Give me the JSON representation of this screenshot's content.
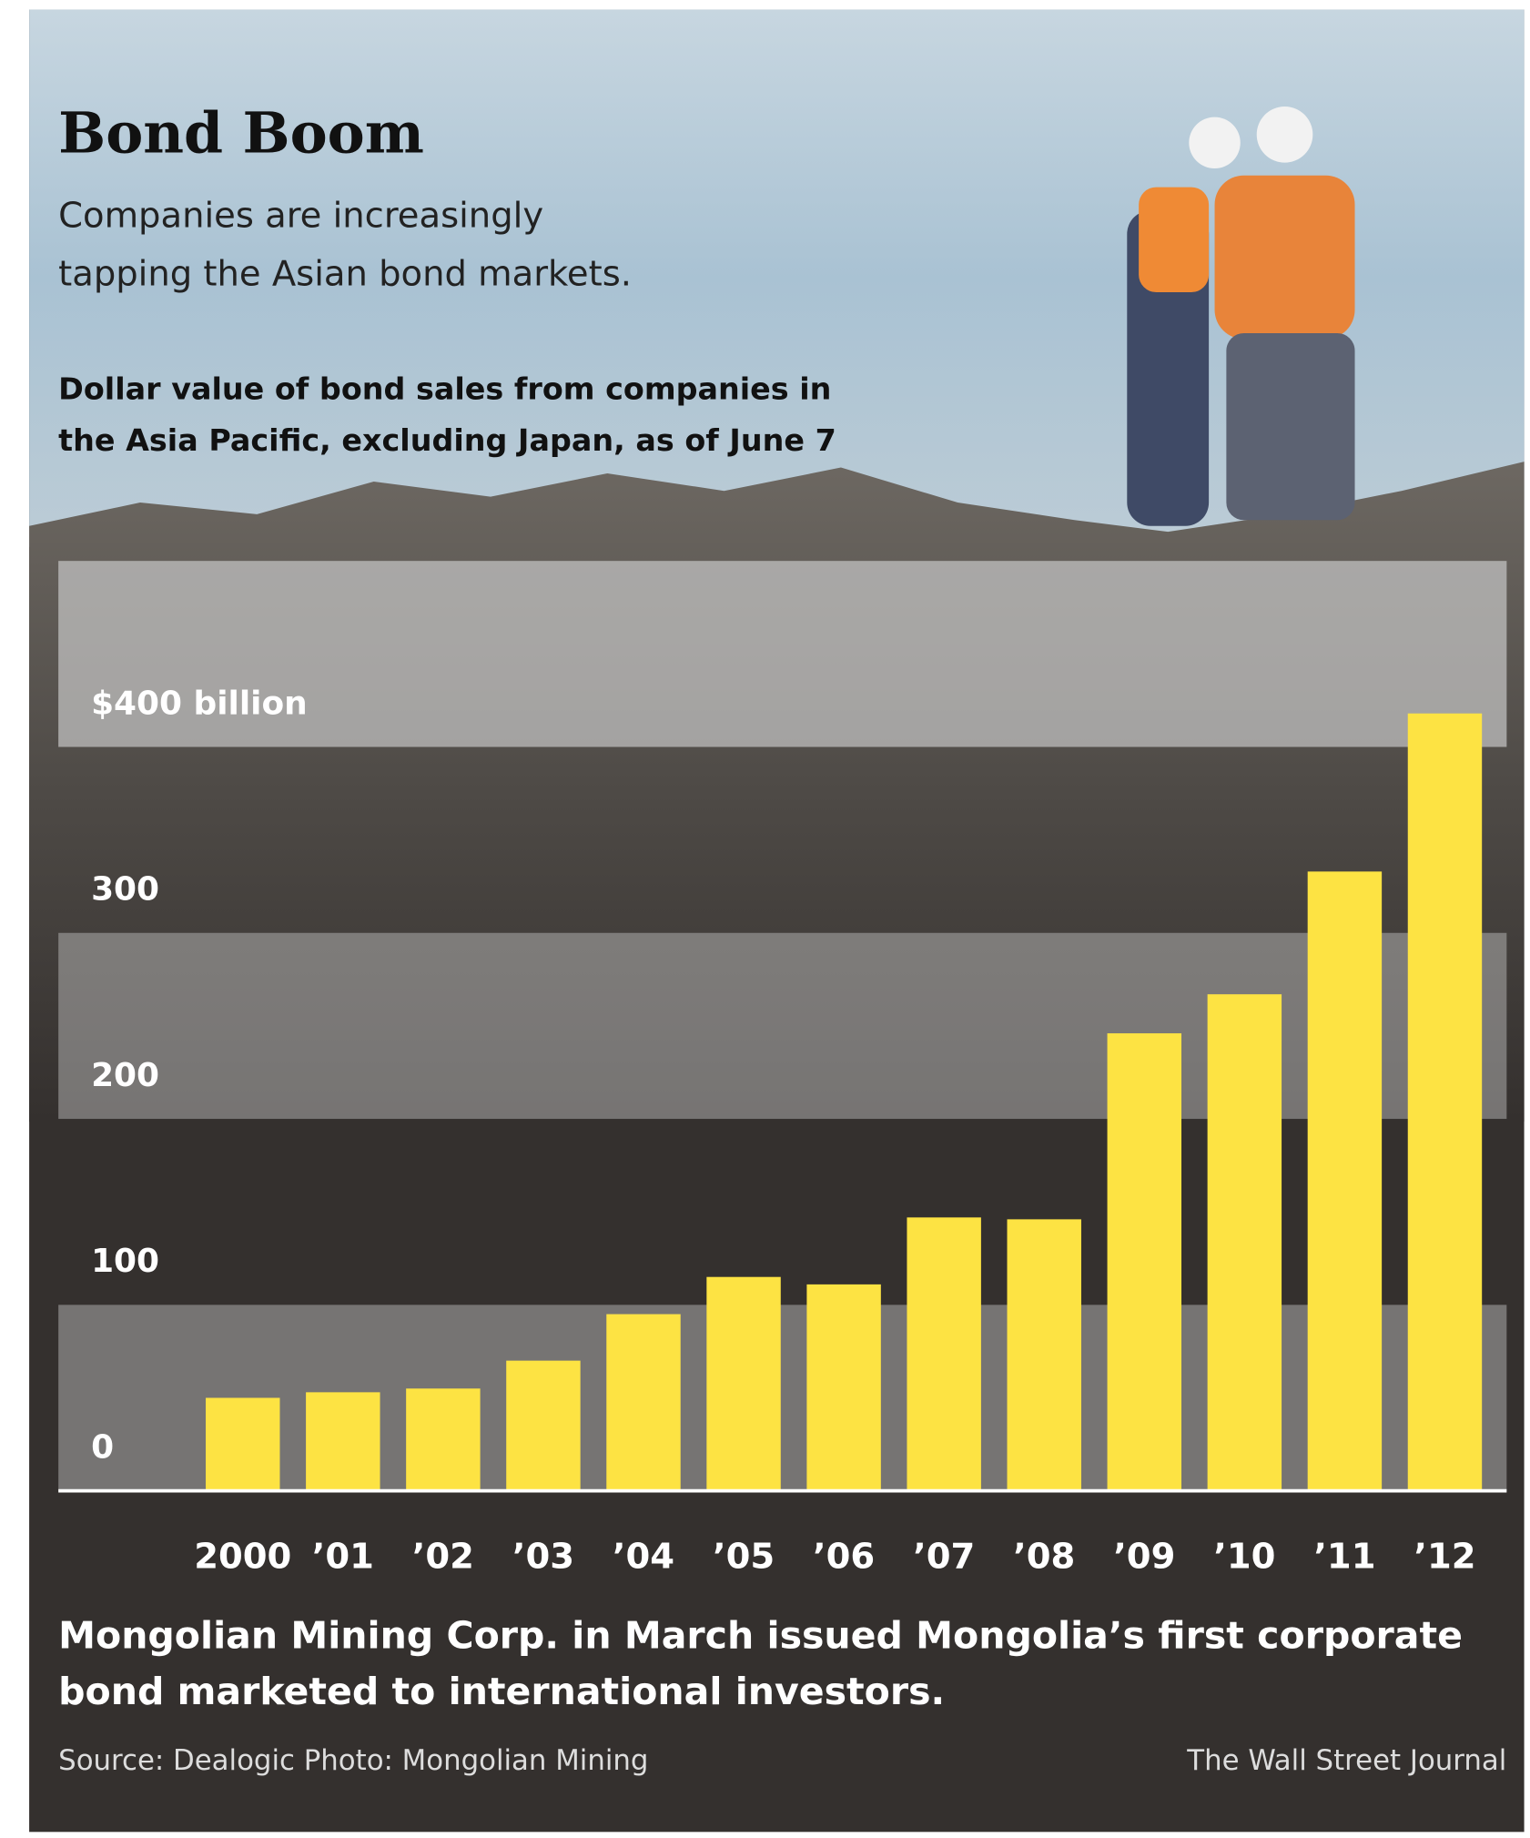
{
  "chart_data": {
    "type": "bar",
    "title": "Bond Boom",
    "subtitle": [
      "Companies are increasingly",
      "tapping the Asian bond markets."
    ],
    "description": [
      "Dollar value of bond sales from companies in",
      "the Asia Pacific, excluding Japan, as of June 7"
    ],
    "categories": [
      "2000",
      "’01",
      "’02",
      "’03",
      "’04",
      "’05",
      "’06",
      "’07",
      "’08",
      "’09",
      "’10",
      "’11",
      "’12"
    ],
    "values": [
      50,
      53,
      55,
      70,
      95,
      115,
      111,
      147,
      146,
      246,
      267,
      333,
      418
    ],
    "color": "#fde343",
    "ylim": [
      0,
      500
    ],
    "yticks": [
      0,
      100,
      200,
      300,
      {
        "value": 400,
        "label": "$400 billion"
      }
    ],
    "caption": [
      "Mongolian Mining Corp. in March issued Mongolia’s first corporate",
      "bond marketed to international investors."
    ],
    "source": "Source: Dealogic   Photo: Mongolian Mining",
    "credit": "The Wall Street Journal"
  }
}
